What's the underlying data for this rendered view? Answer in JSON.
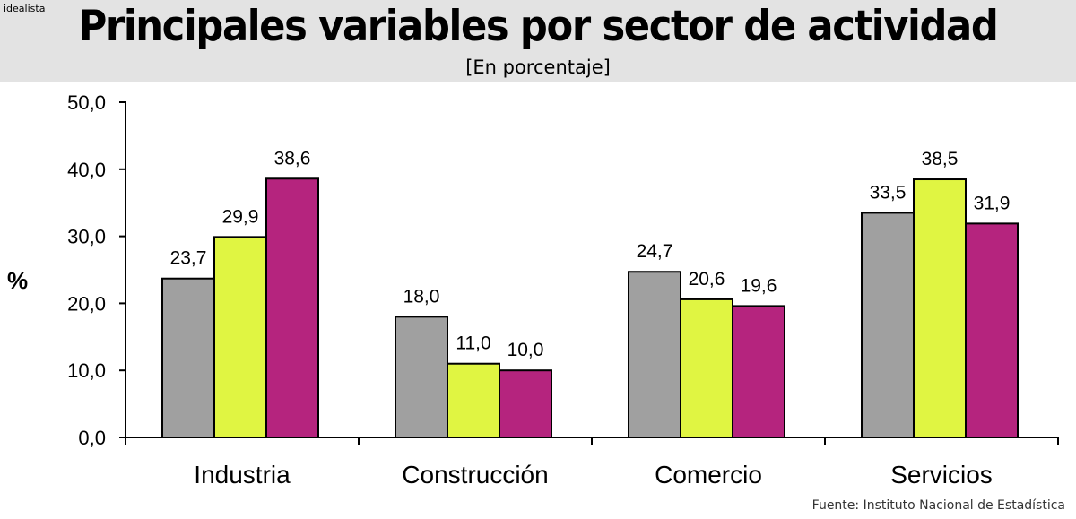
{
  "brand": "idealista",
  "title": "Principales variables por sector de actividad",
  "subtitle": "[En porcentaje]",
  "source": "Fuente: Instituto Nacional de Estadística",
  "colors": [
    "#a0a0a0",
    "#e0f542",
    "#b5247e"
  ],
  "chart_data": {
    "type": "bar",
    "title": "Principales variables por sector de actividad",
    "ylabel": "%",
    "xlabel": "",
    "ylim": [
      0,
      50
    ],
    "yticks": [
      "0,0",
      "10,0",
      "20,0",
      "30,0",
      "40,0",
      "50,0"
    ],
    "categories": [
      "Industria",
      "Construcción",
      "Comercio",
      "Servicios"
    ],
    "series": [
      {
        "name": "Serie 1",
        "values": [
          23.7,
          18.0,
          24.7,
          33.5
        ],
        "labels": [
          "23,7",
          "18,0",
          "24,7",
          "33,5"
        ]
      },
      {
        "name": "Serie 2",
        "values": [
          29.9,
          11.0,
          20.6,
          38.5
        ],
        "labels": [
          "29,9",
          "11,0",
          "20,6",
          "38,5"
        ]
      },
      {
        "name": "Serie 3",
        "values": [
          38.6,
          10.0,
          19.6,
          31.9
        ],
        "labels": [
          "38,6",
          "10,0",
          "19,6",
          "31,9"
        ]
      }
    ]
  }
}
